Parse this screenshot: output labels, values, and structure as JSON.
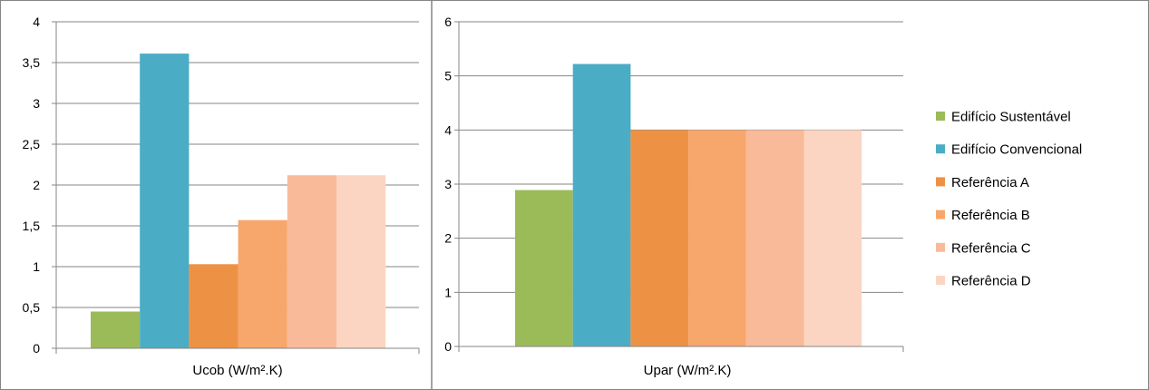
{
  "legend": {
    "placement": "right",
    "items": [
      {
        "label": "Edifício Sustentável",
        "color": "#9BBB59"
      },
      {
        "label": "Edifício Convencional",
        "color": "#4BACC6"
      },
      {
        "label": "Referência A",
        "color": "#ED9245"
      },
      {
        "label": "Referência B",
        "color": "#F7A66C"
      },
      {
        "label": "Referência C",
        "color": "#F9BA9A"
      },
      {
        "label": "Referência D",
        "color": "#FBD5C2"
      }
    ]
  },
  "chart_data": [
    {
      "type": "bar",
      "xlabel": "Ucob (W/m².K)",
      "ylim": [
        0,
        4
      ],
      "yticks": [
        "0",
        "0,5",
        "1",
        "1,5",
        "2",
        "2,5",
        "3",
        "3,5",
        "4"
      ],
      "grid": true,
      "series": [
        {
          "name": "Edifício Sustentável",
          "values": [
            0.45
          ]
        },
        {
          "name": "Edifício Convencional",
          "values": [
            3.61
          ]
        },
        {
          "name": "Referência A",
          "values": [
            1.03
          ]
        },
        {
          "name": "Referência B",
          "values": [
            1.57
          ]
        },
        {
          "name": "Referência C",
          "values": [
            2.12
          ]
        },
        {
          "name": "Referência D",
          "values": [
            2.12
          ]
        }
      ]
    },
    {
      "type": "bar",
      "xlabel": "Upar (W/m².K)",
      "ylim": [
        0,
        6
      ],
      "yticks": [
        "0",
        "1",
        "2",
        "3",
        "4",
        "5",
        "6"
      ],
      "grid": true,
      "series": [
        {
          "name": "Edifício Sustentável",
          "values": [
            2.89
          ]
        },
        {
          "name": "Edifício Convencional",
          "values": [
            5.22
          ]
        },
        {
          "name": "Referência A",
          "values": [
            4.0
          ]
        },
        {
          "name": "Referência B",
          "values": [
            4.0
          ]
        },
        {
          "name": "Referência C",
          "values": [
            4.0
          ]
        },
        {
          "name": "Referência D",
          "values": [
            4.0
          ]
        }
      ]
    }
  ]
}
